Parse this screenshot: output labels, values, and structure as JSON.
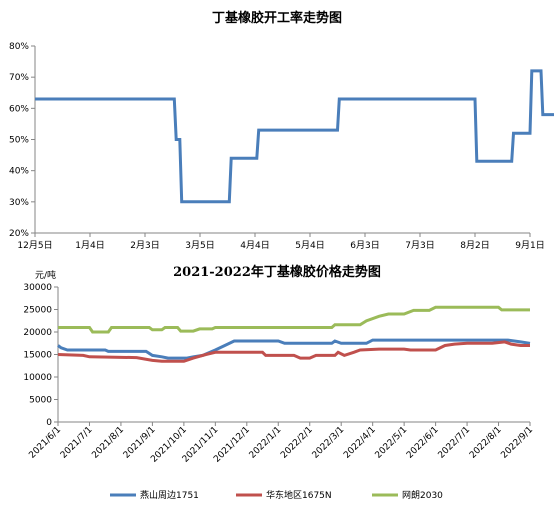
{
  "colors": {
    "series1": "#4a7eba",
    "series2": "#c0504d",
    "series3": "#9bbb59",
    "axis": "#868686"
  },
  "chart_data": [
    {
      "type": "line",
      "title": "丁基橡胶开工率走势图",
      "xlabel": "",
      "ylabel": "",
      "ylim": [
        20,
        80
      ],
      "ytick_labels": [
        "20%",
        "30%",
        "40%",
        "50%",
        "60%",
        "70%",
        "80%"
      ],
      "xtick_labels": [
        "12月5日",
        "1月4日",
        "2月3日",
        "3月5日",
        "4月4日",
        "5月4日",
        "6月3日",
        "7月3日",
        "8月2日",
        "9月1日"
      ],
      "x_range_days": [
        0,
        270
      ],
      "grid": false,
      "legend": "none",
      "series": [
        {
          "color": "#4a7eba",
          "points": [
            [
              0,
              63
            ],
            [
              76,
              63
            ],
            [
              77,
              50
            ],
            [
              79,
              50
            ],
            [
              80,
              30
            ],
            [
              106,
              30
            ],
            [
              107,
              44
            ],
            [
              121,
              44
            ],
            [
              122,
              53
            ],
            [
              165,
              53
            ],
            [
              166,
              63
            ],
            [
              240,
              63
            ],
            [
              241,
              43
            ],
            [
              260,
              43
            ],
            [
              261,
              52
            ],
            [
              270,
              52
            ],
            [
              271,
              72
            ],
            [
              276,
              72
            ],
            [
              277,
              58
            ],
            [
              288,
              58
            ]
          ]
        }
      ]
    },
    {
      "type": "line",
      "title": "2021-2022年丁基橡胶价格走势图",
      "ylabel": "元/吨",
      "xlabel": "",
      "ylim": [
        0,
        30000
      ],
      "ytick_labels": [
        "0",
        "5000",
        "10000",
        "15000",
        "20000",
        "25000",
        "30000"
      ],
      "xtick_labels": [
        "2021/6/1",
        "2021/7/1",
        "2021/8/1",
        "2021/9/1",
        "2021/10/1",
        "2021/11/1",
        "2021/12/1",
        "2022/1/1",
        "2022/2/1",
        "2022/3/1",
        "2022/4/1",
        "2022/5/1",
        "2022/6/1",
        "2022/7/1",
        "2022/8/1",
        "2022/9/1"
      ],
      "x_range_index": [
        0,
        15
      ],
      "grid": false,
      "legend": "bottom",
      "series": [
        {
          "name": "燕山周边1751",
          "color": "#4a7eba",
          "points": [
            [
              0,
              17000
            ],
            [
              0.1,
              16500
            ],
            [
              0.3,
              16000
            ],
            [
              1.5,
              16000
            ],
            [
              1.6,
              15700
            ],
            [
              2.8,
              15700
            ],
            [
              3.0,
              14800
            ],
            [
              3.3,
              14500
            ],
            [
              3.5,
              14200
            ],
            [
              4.1,
              14200
            ],
            [
              4.3,
              14500
            ],
            [
              4.6,
              14800
            ],
            [
              5.0,
              16000
            ],
            [
              5.3,
              17000
            ],
            [
              5.6,
              18000
            ],
            [
              7.0,
              18000
            ],
            [
              7.2,
              17500
            ],
            [
              8.7,
              17500
            ],
            [
              8.8,
              18000
            ],
            [
              9.0,
              17500
            ],
            [
              9.8,
              17500
            ],
            [
              10.0,
              18200
            ],
            [
              13.5,
              18200
            ],
            [
              14.3,
              18200
            ],
            [
              14.7,
              17800
            ],
            [
              15,
              17500
            ]
          ]
        },
        {
          "name": "华东地区1675N",
          "color": "#c0504d",
          "points": [
            [
              0,
              15000
            ],
            [
              0.8,
              14800
            ],
            [
              1.0,
              14500
            ],
            [
              2.5,
              14300
            ],
            [
              3.0,
              13700
            ],
            [
              3.3,
              13500
            ],
            [
              4.0,
              13500
            ],
            [
              4.3,
              14200
            ],
            [
              4.7,
              15000
            ],
            [
              5.0,
              15500
            ],
            [
              6.5,
              15500
            ],
            [
              6.6,
              14800
            ],
            [
              7.5,
              14800
            ],
            [
              7.7,
              14200
            ],
            [
              8.0,
              14200
            ],
            [
              8.2,
              14800
            ],
            [
              8.8,
              14800
            ],
            [
              8.9,
              15500
            ],
            [
              9.1,
              14800
            ],
            [
              9.4,
              15500
            ],
            [
              9.6,
              16000
            ],
            [
              10.2,
              16200
            ],
            [
              11.0,
              16200
            ],
            [
              11.2,
              16000
            ],
            [
              12.0,
              16000
            ],
            [
              12.3,
              17000
            ],
            [
              12.6,
              17300
            ],
            [
              13.0,
              17500
            ],
            [
              13.8,
              17500
            ],
            [
              14.2,
              17800
            ],
            [
              14.4,
              17300
            ],
            [
              14.7,
              17000
            ],
            [
              15,
              17000
            ]
          ]
        },
        {
          "name": "网朗2030",
          "color": "#9bbb59",
          "points": [
            [
              0,
              21000
            ],
            [
              1.0,
              21000
            ],
            [
              1.1,
              20000
            ],
            [
              1.6,
              20000
            ],
            [
              1.7,
              21000
            ],
            [
              2.9,
              21000
            ],
            [
              3.0,
              20500
            ],
            [
              3.3,
              20500
            ],
            [
              3.4,
              21000
            ],
            [
              3.8,
              21000
            ],
            [
              3.9,
              20200
            ],
            [
              4.3,
              20200
            ],
            [
              4.5,
              20700
            ],
            [
              4.9,
              20700
            ],
            [
              5.0,
              21000
            ],
            [
              8.7,
              21000
            ],
            [
              8.8,
              21600
            ],
            [
              9.6,
              21600
            ],
            [
              9.8,
              22500
            ],
            [
              10.2,
              23500
            ],
            [
              10.5,
              24000
            ],
            [
              11.0,
              24000
            ],
            [
              11.3,
              24800
            ],
            [
              11.8,
              24800
            ],
            [
              12.0,
              25500
            ],
            [
              14.0,
              25500
            ],
            [
              14.1,
              24900
            ],
            [
              15,
              24900
            ]
          ]
        }
      ]
    }
  ]
}
